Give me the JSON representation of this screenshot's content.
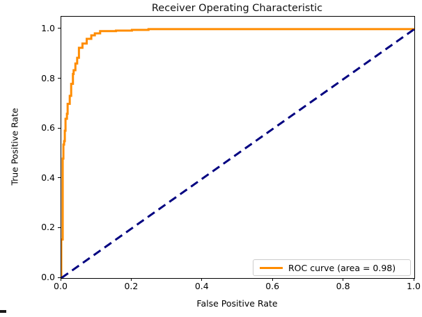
{
  "chart_data": {
    "type": "line",
    "title": "Receiver Operating Characteristic",
    "xlabel": "False Positive Rate",
    "ylabel": "True Positive Rate",
    "xlim": [
      0.0,
      1.0
    ],
    "ylim": [
      0.0,
      1.05
    ],
    "grid": false,
    "x_ticks": [
      {
        "value": 0.0,
        "label": "0.0"
      },
      {
        "value": 0.2,
        "label": "0.2"
      },
      {
        "value": 0.4,
        "label": "0.4"
      },
      {
        "value": 0.6,
        "label": "0.6"
      },
      {
        "value": 0.8,
        "label": "0.8"
      },
      {
        "value": 1.0,
        "label": "1.0"
      }
    ],
    "y_ticks": [
      {
        "value": 0.0,
        "label": "0.0"
      },
      {
        "value": 0.2,
        "label": "0.2"
      },
      {
        "value": 0.4,
        "label": "0.4"
      },
      {
        "value": 0.6,
        "label": "0.6"
      },
      {
        "value": 0.8,
        "label": "0.8"
      },
      {
        "value": 1.0,
        "label": "1.0"
      }
    ],
    "legend": {
      "position": "lower right",
      "entries": [
        {
          "label": "ROC curve (area = 0.98)",
          "color": "#FF8C00",
          "style": "solid"
        }
      ]
    },
    "series": [
      {
        "name": "roc-curve",
        "color": "#FF8C00",
        "style": "solid",
        "line_width": 3,
        "area": 0.98,
        "points": [
          [
            0.0,
            0.0
          ],
          [
            0.0,
            0.155
          ],
          [
            0.004,
            0.155
          ],
          [
            0.004,
            0.48
          ],
          [
            0.006,
            0.48
          ],
          [
            0.006,
            0.536
          ],
          [
            0.008,
            0.536
          ],
          [
            0.008,
            0.55
          ],
          [
            0.01,
            0.55
          ],
          [
            0.01,
            0.592
          ],
          [
            0.012,
            0.592
          ],
          [
            0.012,
            0.64
          ],
          [
            0.016,
            0.64
          ],
          [
            0.016,
            0.66
          ],
          [
            0.018,
            0.66
          ],
          [
            0.018,
            0.7
          ],
          [
            0.024,
            0.7
          ],
          [
            0.024,
            0.732
          ],
          [
            0.028,
            0.732
          ],
          [
            0.028,
            0.78
          ],
          [
            0.033,
            0.78
          ],
          [
            0.033,
            0.82
          ],
          [
            0.035,
            0.82
          ],
          [
            0.035,
            0.835
          ],
          [
            0.04,
            0.835
          ],
          [
            0.04,
            0.862
          ],
          [
            0.045,
            0.862
          ],
          [
            0.045,
            0.885
          ],
          [
            0.05,
            0.885
          ],
          [
            0.05,
            0.925
          ],
          [
            0.06,
            0.925
          ],
          [
            0.06,
            0.942
          ],
          [
            0.072,
            0.942
          ],
          [
            0.072,
            0.961
          ],
          [
            0.085,
            0.961
          ],
          [
            0.085,
            0.975
          ],
          [
            0.095,
            0.975
          ],
          [
            0.095,
            0.983
          ],
          [
            0.11,
            0.983
          ],
          [
            0.11,
            0.992
          ],
          [
            0.155,
            0.992
          ],
          [
            0.155,
            0.994
          ],
          [
            0.2,
            0.994
          ],
          [
            0.2,
            0.997
          ],
          [
            0.247,
            0.997
          ],
          [
            0.247,
            1.0
          ],
          [
            1.0,
            1.0
          ]
        ]
      },
      {
        "name": "chance-diagonal",
        "color": "#000080",
        "style": "dashed",
        "line_width": 3,
        "points": [
          [
            0.0,
            0.0
          ],
          [
            1.0,
            1.0
          ]
        ]
      }
    ]
  }
}
